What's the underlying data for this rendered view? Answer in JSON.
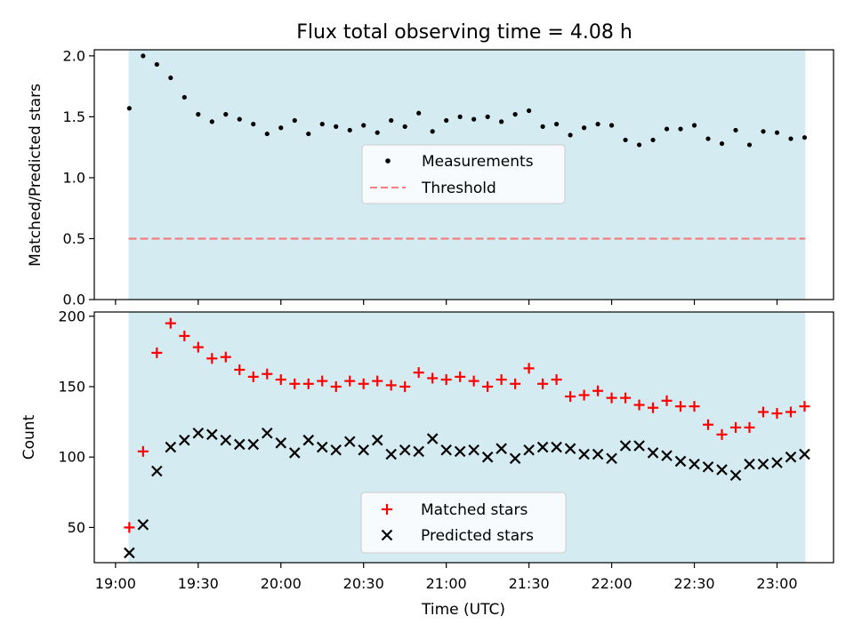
{
  "chart_data": [
    {
      "type": "scatter",
      "title": "Flux total observing time = 4.08 h",
      "ylabel": "Matched/Predicted stars",
      "ylim": [
        0.0,
        2.05
      ],
      "yticks": [
        "0.0",
        "0.5",
        "1.0",
        "1.5",
        "2.0"
      ],
      "shaded_span_color": "#add8e6",
      "legend_placement": "center",
      "threshold": {
        "name": "Threshold",
        "value": 0.5,
        "color": "#f08080",
        "style": "dashed"
      },
      "series": [
        {
          "name": "Measurements",
          "color": "#000000",
          "marker": "dot",
          "x": [
            "19:05",
            "19:10",
            "19:15",
            "19:20",
            "19:25",
            "19:30",
            "19:35",
            "19:40",
            "19:45",
            "19:50",
            "19:55",
            "20:00",
            "20:05",
            "20:10",
            "20:15",
            "20:20",
            "20:25",
            "20:30",
            "20:35",
            "20:40",
            "20:45",
            "20:50",
            "20:55",
            "21:00",
            "21:05",
            "21:10",
            "21:15",
            "21:20",
            "21:25",
            "21:30",
            "21:35",
            "21:40",
            "21:45",
            "21:50",
            "21:55",
            "22:00",
            "22:05",
            "22:10",
            "22:15",
            "22:20",
            "22:25",
            "22:30",
            "22:35",
            "22:40",
            "22:45",
            "22:50",
            "22:55",
            "23:00",
            "23:05",
            "23:10"
          ],
          "y": [
            1.57,
            2.0,
            1.93,
            1.82,
            1.66,
            1.52,
            1.46,
            1.52,
            1.48,
            1.44,
            1.36,
            1.41,
            1.47,
            1.36,
            1.44,
            1.42,
            1.39,
            1.43,
            1.37,
            1.47,
            1.42,
            1.53,
            1.38,
            1.47,
            1.5,
            1.48,
            1.5,
            1.46,
            1.52,
            1.55,
            1.42,
            1.44,
            1.35,
            1.41,
            1.44,
            1.43,
            1.31,
            1.27,
            1.31,
            1.4,
            1.4,
            1.43,
            1.32,
            1.28,
            1.39,
            1.27,
            1.38,
            1.37,
            1.32,
            1.33
          ]
        }
      ]
    },
    {
      "type": "scatter",
      "xlabel": "Time (UTC)",
      "ylabel": "Count",
      "ylim": [
        25,
        203
      ],
      "yticks": [
        "50",
        "100",
        "150",
        "200"
      ],
      "xticks": [
        "19:00",
        "19:30",
        "20:00",
        "20:30",
        "21:00",
        "21:30",
        "22:00",
        "22:30",
        "23:00"
      ],
      "shaded_span_color": "#add8e6",
      "legend_placement": "lower center",
      "series": [
        {
          "name": "Matched stars",
          "color": "#ff0000",
          "marker": "plus",
          "x": [
            "19:05",
            "19:10",
            "19:15",
            "19:20",
            "19:25",
            "19:30",
            "19:35",
            "19:40",
            "19:45",
            "19:50",
            "19:55",
            "20:00",
            "20:05",
            "20:10",
            "20:15",
            "20:20",
            "20:25",
            "20:30",
            "20:35",
            "20:40",
            "20:45",
            "20:50",
            "20:55",
            "21:00",
            "21:05",
            "21:10",
            "21:15",
            "21:20",
            "21:25",
            "21:30",
            "21:35",
            "21:40",
            "21:45",
            "21:50",
            "21:55",
            "22:00",
            "22:05",
            "22:10",
            "22:15",
            "22:20",
            "22:25",
            "22:30",
            "22:35",
            "22:40",
            "22:45",
            "22:50",
            "22:55",
            "23:00",
            "23:05",
            "23:10"
          ],
          "y": [
            50,
            104,
            174,
            195,
            186,
            178,
            170,
            171,
            162,
            157,
            159,
            155,
            152,
            152,
            154,
            150,
            154,
            152,
            154,
            151,
            150,
            160,
            156,
            155,
            157,
            154,
            150,
            155,
            152,
            163,
            152,
            155,
            143,
            144,
            147,
            142,
            142,
            137,
            135,
            140,
            136,
            136,
            123,
            116,
            121,
            121,
            132,
            131,
            132,
            136
          ]
        },
        {
          "name": "Predicted stars",
          "color": "#000000",
          "marker": "x",
          "x": [
            "19:05",
            "19:10",
            "19:15",
            "19:20",
            "19:25",
            "19:30",
            "19:35",
            "19:40",
            "19:45",
            "19:50",
            "19:55",
            "20:00",
            "20:05",
            "20:10",
            "20:15",
            "20:20",
            "20:25",
            "20:30",
            "20:35",
            "20:40",
            "20:45",
            "20:50",
            "20:55",
            "21:00",
            "21:05",
            "21:10",
            "21:15",
            "21:20",
            "21:25",
            "21:30",
            "21:35",
            "21:40",
            "21:45",
            "21:50",
            "21:55",
            "22:00",
            "22:05",
            "22:10",
            "22:15",
            "22:20",
            "22:25",
            "22:30",
            "22:35",
            "22:40",
            "22:45",
            "22:50",
            "22:55",
            "23:00",
            "23:05",
            "23:10"
          ],
          "y": [
            32,
            52,
            90,
            107,
            112,
            117,
            116,
            112,
            109,
            109,
            117,
            110,
            103,
            112,
            107,
            105,
            111,
            105,
            112,
            102,
            105,
            104,
            113,
            105,
            104,
            105,
            100,
            106,
            99,
            105,
            107,
            107,
            106,
            102,
            102,
            99,
            108,
            108,
            103,
            101,
            97,
            95,
            93,
            91,
            87,
            95,
            95,
            96,
            100,
            102
          ]
        }
      ]
    }
  ]
}
